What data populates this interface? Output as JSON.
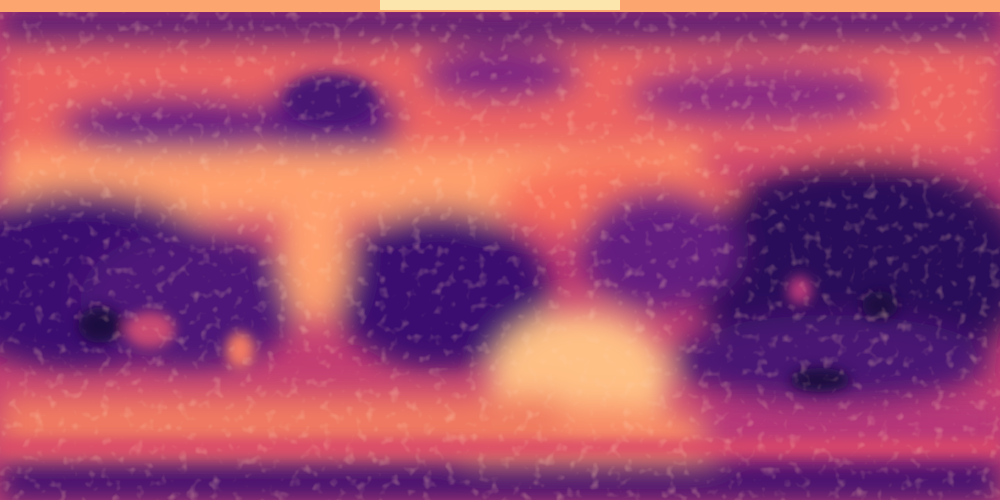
{
  "map": {
    "projection": "equirectangular",
    "colormap": "magma",
    "palette": [
      "#1b0c41",
      "#3b0f70",
      "#641a80",
      "#8c2981",
      "#b73779",
      "#de4968",
      "#f7705c",
      "#fe9f6d",
      "#fecf92",
      "#fcfdbf"
    ],
    "labels": "none"
  }
}
